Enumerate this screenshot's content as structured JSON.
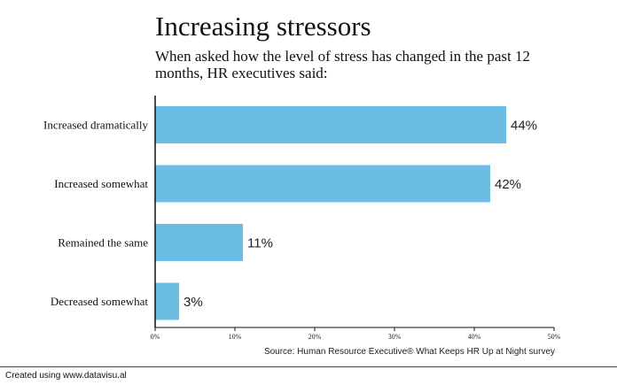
{
  "chart_data": {
    "type": "bar",
    "orientation": "horizontal",
    "title": "Increasing stressors",
    "subtitle": "When asked how the level of stress has changed in the past 12 months, HR executives said:",
    "categories": [
      "Increased dramatically",
      "Increased somewhat",
      "Remained the same",
      "Decreased somewhat"
    ],
    "values": [
      44,
      42,
      11,
      3
    ],
    "value_labels": [
      "44%",
      "42%",
      "11%",
      "3%"
    ],
    "xlim": [
      0,
      50
    ],
    "x_ticks": [
      "0%",
      "10%",
      "20%",
      "30%",
      "40%",
      "50%"
    ],
    "bar_color": "#6bbde3",
    "grid": false,
    "source": "Source: Human Resource Executive® What Keeps HR Up at Night survey"
  },
  "footer": {
    "credit": "Created using www.datavisu.al"
  }
}
